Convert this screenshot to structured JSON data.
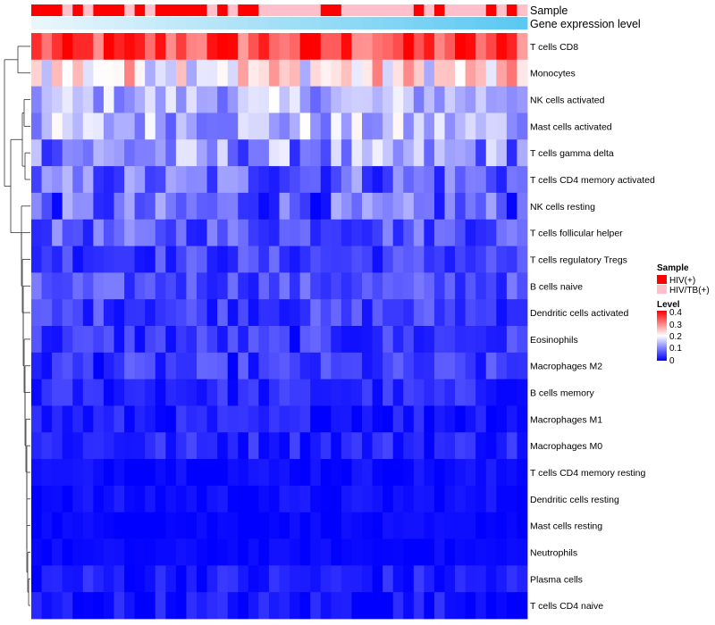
{
  "chart_data": {
    "type": "heatmap",
    "title": "",
    "annotation_labels": {
      "sample": "Sample",
      "gene": "Gene expression level"
    },
    "rows": [
      "T cells CD8",
      "Monocytes",
      "NK cells activated",
      "Mast cells activated",
      "T cells gamma delta",
      "T cells CD4 memory activated",
      "NK cells resting",
      "T cells follicular helper",
      "T cells regulatory  Tregs",
      "B cells naive",
      "Dendritic cells activated",
      "Eosinophils",
      "Macrophages M2",
      "B cells memory",
      "Macrophages M1",
      "Macrophages M0",
      "T cells CD4 memory resting",
      "Dendritic cells resting",
      "Mast cells resting",
      "Neutrophils",
      "Plasma cells",
      "T cells CD4 naive"
    ],
    "n_columns": 48,
    "sample_groups": [
      "HIV(+)",
      "HIV(+)",
      "HIV(+)",
      "HIV/TB(+)",
      "HIV(+)",
      "HIV/TB(+)",
      "HIV(+)",
      "HIV(+)",
      "HIV(+)",
      "HIV/TB(+)",
      "HIV(+)",
      "HIV/TB(+)",
      "HIV(+)",
      "HIV(+)",
      "HIV(+)",
      "HIV(+)",
      "HIV(+)",
      "HIV/TB(+)",
      "HIV(+)",
      "HIV/TB(+)",
      "HIV(+)",
      "HIV(+)",
      "HIV/TB(+)",
      "HIV/TB(+)",
      "HIV/TB(+)",
      "HIV/TB(+)",
      "HIV/TB(+)",
      "HIV/TB(+)",
      "HIV(+)",
      "HIV(+)",
      "HIV/TB(+)",
      "HIV/TB(+)",
      "HIV/TB(+)",
      "HIV/TB(+)",
      "HIV/TB(+)",
      "HIV/TB(+)",
      "HIV/TB(+)",
      "HIV(+)",
      "HIV/TB(+)",
      "HIV(+)",
      "HIV/TB(+)",
      "HIV/TB(+)",
      "HIV/TB(+)",
      "HIV/TB(+)",
      "HIV(+)",
      "HIV/TB(+)",
      "HIV(+)",
      "HIV/TB(+)"
    ],
    "sample_colors": {
      "HIV(+)": "#ff0000",
      "HIV/TB(+)": "#ffc0cb"
    },
    "gene_level_colors": {
      "low": "#eaf6fc",
      "high": "#5bc8f2"
    },
    "row_levels": [
      0.34,
      0.22,
      0.14,
      0.14,
      0.11,
      0.08,
      0.07,
      0.07,
      0.05,
      0.06,
      0.05,
      0.04,
      0.04,
      0.03,
      0.02,
      0.03,
      0.01,
      0.01,
      0.005,
      0.005,
      0.02,
      0.015
    ],
    "row_spread": [
      0.08,
      0.09,
      0.06,
      0.07,
      0.08,
      0.07,
      0.07,
      0.05,
      0.04,
      0.04,
      0.04,
      0.04,
      0.04,
      0.03,
      0.03,
      0.03,
      0.015,
      0.015,
      0.01,
      0.01,
      0.03,
      0.03
    ],
    "scale": {
      "min": 0,
      "max": 0.4,
      "ticks": [
        0.4,
        0.3,
        0.2,
        0.1,
        0
      ],
      "colors": [
        "#0000ff",
        "#ffffff",
        "#ff0000"
      ]
    },
    "legend": {
      "sample_title": "Sample",
      "sample_entries": [
        "HIV(+)",
        "HIV/TB(+)"
      ],
      "level_title": "Level",
      "tick_labels": [
        "0.4",
        "0.3",
        "0.2",
        "0.1",
        "0"
      ]
    }
  }
}
